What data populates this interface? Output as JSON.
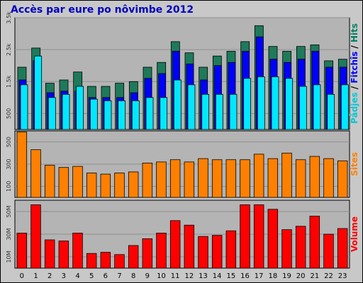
{
  "chart_data": {
    "title": "Accès par eure po nôvimbe 2012",
    "categories": [
      "0",
      "1",
      "2",
      "3",
      "4",
      "5",
      "6",
      "7",
      "8",
      "9",
      "10",
      "11",
      "12",
      "13",
      "14",
      "15",
      "16",
      "17",
      "18",
      "19",
      "20",
      "21",
      "22",
      "23"
    ],
    "panels": [
      {
        "type": "bar",
        "label_parts": [
          {
            "text": "Pådjes",
            "color": "#00c8d8"
          },
          {
            "text": " / ",
            "color": "#000000"
          },
          {
            "text": "Fitchîs",
            "color": "#0000ff"
          },
          {
            "text": " / ",
            "color": "#000000"
          },
          {
            "text": "Hits",
            "color": "#008060"
          }
        ],
        "ylim": [
          0,
          3500
        ],
        "ticks": [
          {
            "value": 500,
            "label": "500"
          },
          {
            "value": 1500,
            "label": "1.5k"
          },
          {
            "value": 2500,
            "label": "2.5k"
          },
          {
            "value": 3500,
            "label": "3.5k"
          }
        ],
        "series": [
          {
            "name": "Hits",
            "color": "#1e7a5a",
            "values": [
              1950,
              2550,
              1450,
              1550,
              1800,
              1350,
              1350,
              1450,
              1500,
              1950,
              2100,
              2750,
              2400,
              1950,
              2300,
              2450,
              2750,
              3250,
              2600,
              2450,
              2600,
              2650,
              2150,
              2200
            ]
          },
          {
            "name": "Fitchîs",
            "color": "#0000ff",
            "values": [
              1550,
              2150,
              1150,
              1200,
              1200,
              1000,
              1000,
              1000,
              1150,
              1600,
              1750,
              2450,
              2050,
              1550,
              2000,
              2100,
              2450,
              2900,
              2200,
              2100,
              2200,
              2450,
              1950,
              1950
            ]
          },
          {
            "name": "Pådjes",
            "color": "#00e8ff",
            "values": [
              1400,
              2300,
              1000,
              1100,
              1350,
              950,
              900,
              900,
              900,
              1000,
              1000,
              1550,
              1400,
              1100,
              1100,
              1100,
              1600,
              1650,
              1650,
              1600,
              1350,
              1400,
              1100,
              1400
            ]
          }
        ]
      },
      {
        "type": "bar",
        "label_parts": [
          {
            "text": "Sites",
            "color": "#ff8000"
          }
        ],
        "ylim": [
          0,
          600
        ],
        "ticks": [
          {
            "value": 100,
            "label": "100"
          },
          {
            "value": 300,
            "label": "300"
          },
          {
            "value": 500,
            "label": "500"
          }
        ],
        "series": [
          {
            "name": "Sites",
            "color": "#ff8000",
            "values": [
              590,
              430,
              290,
              270,
              280,
              220,
              210,
              220,
              230,
              310,
              320,
              340,
              320,
              350,
              340,
              340,
              340,
              390,
              350,
              400,
              340,
              370,
              350,
              330
            ]
          }
        ]
      },
      {
        "type": "bar",
        "label_parts": [
          {
            "text": "Volume",
            "color": "#ff0000"
          }
        ],
        "ylim": [
          0,
          60
        ],
        "ticks": [
          {
            "value": 10,
            "label": "10M"
          },
          {
            "value": 30,
            "label": "30M"
          },
          {
            "value": 50,
            "label": "50M"
          }
        ],
        "series": [
          {
            "name": "Volume",
            "color": "#ff0000",
            "values": [
              31,
              56,
              25,
              24,
              31,
              13,
              14,
              12,
              20,
              26,
              31,
              42,
              38,
              28,
              29,
              33,
              56,
              56,
              52,
              34,
              37,
              46,
              30,
              35
            ]
          }
        ]
      }
    ]
  }
}
